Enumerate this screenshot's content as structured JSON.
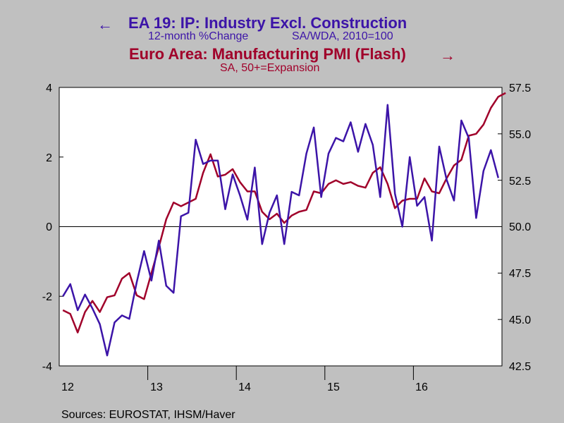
{
  "chart_data": {
    "type": "line",
    "title_left": "EA 19: IP: Industry Excl. Construction",
    "subtitle_left_a": "12-month %Change",
    "subtitle_left_b": "SA/WDA, 2010=100",
    "title_right": "Euro Area: Manufacturing PMI (Flash)",
    "subtitle_right": "SA, 50+=Expansion",
    "left_arrow": "←",
    "right_arrow": "→",
    "source": "Sources:  EUROSTAT, IHSM/Haver",
    "x_ticks": [
      "12",
      "13",
      "14",
      "15",
      "16"
    ],
    "y_left": {
      "lim": [
        -4,
        4
      ],
      "ticks": [
        "4",
        "2",
        "0",
        "-2",
        "-4"
      ]
    },
    "y_right": {
      "lim": [
        42.5,
        57.5
      ],
      "ticks": [
        "57.5",
        "55.0",
        "52.5",
        "50.0",
        "47.5",
        "45.0",
        "42.5"
      ]
    },
    "x_range": {
      "start": "Jan 2012",
      "months": 60
    },
    "colors": {
      "ip": "#3c14a8",
      "pmi": "#a0002a",
      "plot_bg": "#ffffff",
      "page_bg": "#c0c0c0"
    },
    "series": [
      {
        "name": "EA 19: IP: Industry Excl. Construction",
        "axis": "left",
        "start": "Jan 2012",
        "values": [
          -2.0,
          -1.65,
          -2.4,
          -1.95,
          -2.35,
          -2.8,
          -3.7,
          -2.75,
          -2.55,
          -2.65,
          -1.6,
          -0.7,
          -1.55,
          -0.4,
          -1.7,
          -1.9,
          0.3,
          0.4,
          2.5,
          1.8,
          1.9,
          1.9,
          0.5,
          1.5,
          0.9,
          0.2,
          1.7,
          -0.5,
          0.4,
          0.9,
          -0.5,
          1.0,
          0.9,
          2.1,
          2.85,
          0.85,
          2.1,
          2.55,
          2.45,
          3.0,
          2.15,
          2.95,
          2.35,
          0.85,
          3.5,
          0.95,
          0.0,
          2.0,
          0.6,
          0.85,
          -0.4,
          2.3,
          1.35,
          0.75,
          3.05,
          2.55,
          0.25,
          1.6,
          2.2,
          1.4
        ]
      },
      {
        "name": "Euro Area: Manufacturing PMI (Flash)",
        "axis": "right",
        "start": "Jan 2012",
        "values": [
          45.5,
          45.3,
          44.3,
          45.4,
          46.0,
          45.4,
          46.2,
          46.3,
          47.2,
          47.5,
          46.3,
          46.1,
          47.5,
          48.9,
          50.4,
          51.3,
          51.1,
          51.3,
          51.5,
          52.9,
          53.9,
          52.7,
          52.8,
          53.1,
          52.4,
          51.9,
          51.9,
          50.8,
          50.4,
          50.7,
          50.2,
          50.6,
          50.8,
          50.9,
          51.9,
          51.8,
          52.3,
          52.5,
          52.3,
          52.4,
          52.2,
          52.1,
          52.9,
          53.2,
          52.3,
          51.0,
          51.4,
          51.5,
          51.5,
          52.6,
          51.9,
          51.8,
          52.6,
          53.3,
          53.6,
          54.9,
          55.0,
          55.5,
          56.4,
          57.0,
          57.2
        ]
      }
    ]
  }
}
